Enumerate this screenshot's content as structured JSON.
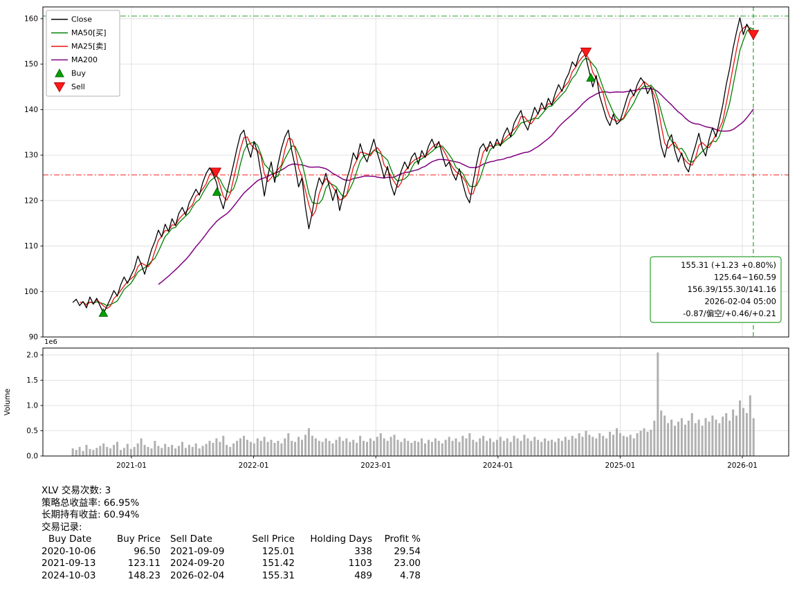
{
  "colors": {
    "close": "#000000",
    "ma50": "#008000",
    "ma25": "#e81212",
    "ma200": "#800080",
    "buy": "#00a000",
    "buy_edge": "#006400",
    "sell": "#ff1a1a",
    "sell_edge": "#b00000",
    "signal_green": "#2ca02c",
    "range_red": "#ff3333",
    "volume_bar": "#b0b0b0",
    "grid": "#d9d9d9",
    "legend_border": "#b0b0b0"
  },
  "chart_data": {
    "type": "line",
    "symbol": "XLV",
    "title": "",
    "x_ticks": [
      "2021-01",
      "2022-01",
      "2023-01",
      "2024-01",
      "2025-01",
      "2026-01"
    ],
    "x_tick_years": [
      2021,
      2022,
      2023,
      2024,
      2025,
      2026
    ],
    "price_axis": {
      "ticks": [
        90,
        100,
        110,
        120,
        130,
        140,
        150,
        160
      ],
      "min": 90,
      "max": 160
    },
    "volume_axis": {
      "ticks": [
        "0.0",
        "0.5",
        "1.0",
        "1.5",
        "2.0"
      ],
      "unit_label": "1e6",
      "ylabel": "Volume",
      "max": 2.0
    },
    "t0": 2020.52,
    "dt": 0.028,
    "close": [
      97.6,
      98.3,
      96.9,
      97.8,
      96.4,
      98.8,
      97.2,
      98.5,
      96.8,
      95.2,
      96.8,
      98.4,
      100.2,
      99.0,
      101.5,
      103.2,
      101.8,
      103.5,
      105.0,
      107.8,
      106.0,
      103.8,
      106.5,
      109.2,
      111.0,
      113.5,
      112.0,
      114.8,
      113.2,
      116.0,
      114.5,
      117.2,
      118.5,
      116.8,
      119.5,
      121.0,
      122.5,
      121.2,
      124.0,
      126.0,
      127.2,
      125.8,
      124.0,
      120.5,
      118.2,
      121.5,
      124.8,
      128.0,
      131.5,
      134.5,
      135.5,
      132.0,
      129.5,
      133.0,
      130.5,
      126.0,
      121.0,
      125.5,
      128.5,
      124.0,
      128.0,
      131.5,
      134.0,
      135.5,
      131.0,
      127.5,
      123.0,
      125.0,
      118.5,
      113.8,
      117.5,
      122.0,
      125.0,
      123.5,
      126.0,
      123.0,
      120.0,
      122.5,
      117.8,
      121.0,
      124.5,
      127.0,
      130.5,
      129.0,
      132.5,
      130.0,
      128.5,
      131.0,
      133.5,
      130.5,
      128.0,
      125.0,
      127.5,
      123.5,
      121.2,
      124.0,
      126.5,
      128.5,
      127.0,
      129.5,
      130.5,
      128.0,
      131.0,
      129.5,
      132.0,
      133.5,
      131.5,
      133.0,
      130.0,
      127.5,
      128.5,
      126.0,
      124.5,
      127.0,
      123.8,
      121.0,
      119.5,
      124.0,
      128.0,
      131.5,
      132.5,
      130.8,
      133.0,
      131.5,
      133.5,
      132.0,
      134.5,
      136.0,
      134.0,
      137.0,
      138.5,
      139.8,
      137.0,
      135.5,
      138.0,
      140.5,
      139.0,
      141.5,
      140.0,
      142.5,
      141.0,
      143.5,
      145.5,
      144.0,
      146.5,
      148.0,
      150.5,
      149.5,
      152.0,
      153.3,
      151.4,
      148.2,
      145.0,
      147.5,
      143.0,
      140.5,
      138.0,
      136.5,
      139.0,
      136.8,
      137.5,
      140.0,
      142.5,
      144.5,
      143.0,
      145.5,
      147.0,
      146.0,
      143.5,
      145.0,
      141.0,
      136.5,
      132.0,
      129.5,
      133.0,
      134.5,
      131.0,
      128.5,
      130.5,
      127.5,
      126.3,
      129.5,
      132.0,
      134.8,
      131.5,
      129.8,
      133.5,
      136.0,
      134.0,
      137.5,
      141.0,
      145.5,
      149.0,
      153.5,
      157.0,
      160.2,
      156.5,
      158.8,
      157.5,
      155.3
    ],
    "volume": [
      0.15,
      0.12,
      0.18,
      0.1,
      0.22,
      0.14,
      0.12,
      0.16,
      0.2,
      0.25,
      0.18,
      0.15,
      0.22,
      0.28,
      0.12,
      0.16,
      0.24,
      0.14,
      0.18,
      0.25,
      0.35,
      0.22,
      0.18,
      0.15,
      0.3,
      0.2,
      0.16,
      0.24,
      0.18,
      0.22,
      0.15,
      0.2,
      0.28,
      0.16,
      0.22,
      0.18,
      0.25,
      0.15,
      0.2,
      0.24,
      0.3,
      0.26,
      0.35,
      0.28,
      0.4,
      0.22,
      0.18,
      0.25,
      0.3,
      0.35,
      0.4,
      0.32,
      0.28,
      0.25,
      0.35,
      0.3,
      0.38,
      0.28,
      0.32,
      0.26,
      0.3,
      0.25,
      0.35,
      0.45,
      0.3,
      0.28,
      0.38,
      0.32,
      0.42,
      0.55,
      0.4,
      0.35,
      0.3,
      0.28,
      0.35,
      0.3,
      0.25,
      0.32,
      0.38,
      0.3,
      0.35,
      0.28,
      0.32,
      0.26,
      0.4,
      0.3,
      0.28,
      0.35,
      0.3,
      0.38,
      0.45,
      0.35,
      0.3,
      0.38,
      0.42,
      0.32,
      0.28,
      0.35,
      0.3,
      0.26,
      0.3,
      0.28,
      0.35,
      0.25,
      0.32,
      0.28,
      0.35,
      0.3,
      0.25,
      0.32,
      0.38,
      0.3,
      0.35,
      0.28,
      0.4,
      0.35,
      0.45,
      0.32,
      0.28,
      0.35,
      0.4,
      0.3,
      0.35,
      0.28,
      0.32,
      0.38,
      0.3,
      0.35,
      0.28,
      0.4,
      0.35,
      0.3,
      0.42,
      0.35,
      0.3,
      0.38,
      0.32,
      0.28,
      0.35,
      0.3,
      0.32,
      0.28,
      0.35,
      0.3,
      0.38,
      0.32,
      0.4,
      0.35,
      0.45,
      0.38,
      0.5,
      0.42,
      0.38,
      0.35,
      0.45,
      0.4,
      0.35,
      0.48,
      0.42,
      0.55,
      0.45,
      0.4,
      0.38,
      0.42,
      0.35,
      0.45,
      0.5,
      0.55,
      0.48,
      0.52,
      0.7,
      2.05,
      0.9,
      0.8,
      0.65,
      0.72,
      0.6,
      0.68,
      0.75,
      0.62,
      0.7,
      0.85,
      0.65,
      0.72,
      0.6,
      0.75,
      0.68,
      0.8,
      0.72,
      0.65,
      0.78,
      0.85,
      0.7,
      0.92,
      0.8,
      1.1,
      0.95,
      0.85,
      1.2,
      0.75
    ],
    "ma_series": [
      {
        "key": "ma200",
        "name": "MA200",
        "window": 26
      },
      {
        "key": "ma50",
        "name": "MA50[买]",
        "window": 5
      },
      {
        "key": "ma25",
        "name": "MA25[卖]",
        "window": 3
      }
    ],
    "legend_items": [
      {
        "key": "close",
        "label": "Close",
        "kind": "line"
      },
      {
        "key": "ma50",
        "label": "MA50[买]",
        "kind": "line"
      },
      {
        "key": "ma25",
        "label": "MA25[卖]",
        "kind": "line"
      },
      {
        "key": "ma200",
        "label": "MA200",
        "kind": "line"
      },
      {
        "key": "buy",
        "label": "Buy",
        "kind": "triangle-up"
      },
      {
        "key": "sell",
        "label": "Sell",
        "kind": "triangle-down"
      }
    ],
    "buy_markers": [
      {
        "t": 2020.77,
        "price": 96.5
      },
      {
        "t": 2021.7,
        "price": 123.11
      },
      {
        "t": 2024.76,
        "price": 148.23
      }
    ],
    "sell_markers": [
      {
        "t": 2021.69,
        "price": 125.01
      },
      {
        "t": 2024.72,
        "price": 151.42
      },
      {
        "t": 2026.09,
        "price": 155.31
      }
    ],
    "hlines": [
      {
        "value": 160.59,
        "color_key": "signal_green"
      },
      {
        "value": 125.64,
        "color_key": "range_red"
      }
    ],
    "vline": {
      "t": 2026.09,
      "color_key": "signal_green"
    },
    "annotation": {
      "lines": [
        "155.31 (+1.23 +0.80%)",
        "125.64~160.59",
        "156.39/155.30/141.16",
        "2026-02-04 05:00",
        "-0.87/偏空/+0.46/+0.21"
      ]
    }
  },
  "stats": {
    "trade_count_line": "XLV 交易次数: 3",
    "strategy_return_line": "策略总收益率: 66.95%",
    "hold_return_line": "长期持有收益: 60.94%",
    "records_label": "交易记录:",
    "table": {
      "headers": [
        "Buy Date",
        "Buy Price",
        "Sell Date",
        "Sell Price",
        "Holding Days",
        "Profit %"
      ],
      "rows": [
        [
          "2020-10-06",
          "96.50",
          "2021-09-09",
          "125.01",
          "338",
          "29.54"
        ],
        [
          "2021-09-13",
          "123.11",
          "2024-09-20",
          "151.42",
          "1103",
          "23.00"
        ],
        [
          "2024-10-03",
          "148.23",
          "2026-02-04",
          "155.31",
          "489",
          "4.78"
        ]
      ]
    }
  }
}
